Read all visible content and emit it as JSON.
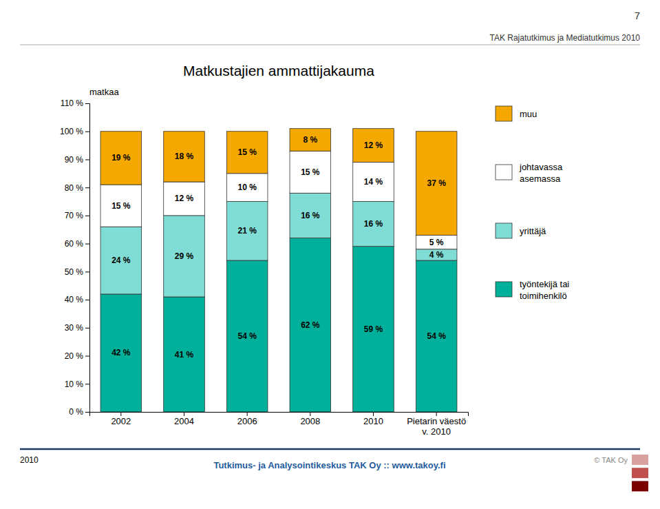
{
  "chart_data": {
    "type": "bar",
    "stacked": true,
    "title": "Matkustajien ammattijakauma",
    "ylabel": "matkaa",
    "categories": [
      "2002",
      "2004",
      "2006",
      "2008",
      "2010",
      "Pietarin väestö\nv. 2010"
    ],
    "series": [
      {
        "name": "työntekijä tai\ntoimihenkilö",
        "color": "#00B09A",
        "values": [
          42,
          41,
          54,
          62,
          59,
          54
        ],
        "value_labels": [
          "42 %",
          "41 %",
          "54 %",
          "62 %",
          "59 %",
          "54 %"
        ]
      },
      {
        "name": "yrittäjä",
        "color": "#80DDD5",
        "values": [
          24,
          29,
          21,
          16,
          16,
          4
        ],
        "value_labels": [
          "24 %",
          "29 %",
          "21 %",
          "16 %",
          "16 %",
          "4 %"
        ]
      },
      {
        "name": "johtavassa\nasemassa",
        "color": "#FFFFFF",
        "values": [
          15,
          12,
          10,
          15,
          14,
          5
        ],
        "value_labels": [
          "15 %",
          "12 %",
          "10 %",
          "15 %",
          "14 %",
          "5 %"
        ]
      },
      {
        "name": "muu",
        "color": "#F5A800",
        "values": [
          19,
          18,
          15,
          8,
          12,
          37
        ],
        "value_labels": [
          "19 %",
          "18 %",
          "15 %",
          "8 %",
          "12 %",
          "37 %"
        ]
      }
    ],
    "ylim": [
      0,
      110
    ],
    "yticks": [
      {
        "value": 0,
        "label": "0 %"
      },
      {
        "value": 10,
        "label": "10 %"
      },
      {
        "value": 20,
        "label": "20 %"
      },
      {
        "value": 30,
        "label": "30 %"
      },
      {
        "value": 40,
        "label": "40 %"
      },
      {
        "value": 50,
        "label": "50 %"
      },
      {
        "value": 60,
        "label": "60 %"
      },
      {
        "value": 70,
        "label": "70 %"
      },
      {
        "value": 80,
        "label": "80 %"
      },
      {
        "value": 90,
        "label": "90 %"
      },
      {
        "value": 100,
        "label": "100 %"
      },
      {
        "value": 110,
        "label": "110 %"
      }
    ],
    "data_labels": true,
    "grid": false,
    "legend": "right",
    "annotations": [
      "7",
      "TAK Rajatutkimus ja Mediatutkimus 2010",
      "2010",
      "Tutkimus- ja Analysointikeskus TAK Oy  ::  www.takoy.fi",
      "© TAK Oy"
    ]
  }
}
